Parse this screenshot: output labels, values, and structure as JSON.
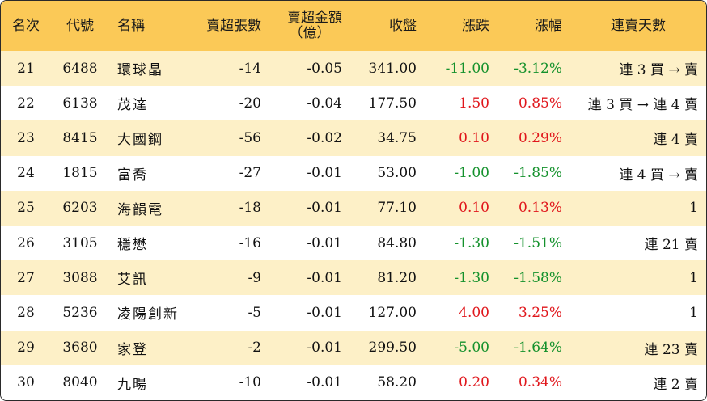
{
  "header": {
    "rank": "名次",
    "code": "代號",
    "name": "名稱",
    "net_sell_lots": "賣超張數",
    "net_sell_amount_line1": "賣超金額",
    "net_sell_amount_line2": "（億）",
    "close": "收盤",
    "change": "漲跌",
    "change_pct": "漲幅",
    "streak": "連賣天數"
  },
  "colors": {
    "header_bg": "#fbc957",
    "row_alt_bg": "#fdf0c7",
    "up": "#e0161b",
    "down": "#14912c"
  },
  "rows": [
    {
      "rank": "21",
      "code": "6488",
      "name": "環球晶",
      "lots": "-14",
      "amount": "-0.05",
      "close": "341.00",
      "change": "-11.00",
      "pct": "-3.12%",
      "dir": "down",
      "streak": "連 3 買 → 賣"
    },
    {
      "rank": "22",
      "code": "6138",
      "name": "茂達",
      "lots": "-20",
      "amount": "-0.04",
      "close": "177.50",
      "change": "1.50",
      "pct": "0.85%",
      "dir": "up",
      "streak": "連 3 買 → 連 4 賣"
    },
    {
      "rank": "23",
      "code": "8415",
      "name": "大國鋼",
      "lots": "-56",
      "amount": "-0.02",
      "close": "34.75",
      "change": "0.10",
      "pct": "0.29%",
      "dir": "up",
      "streak": "連 4 賣"
    },
    {
      "rank": "24",
      "code": "1815",
      "name": "富喬",
      "lots": "-27",
      "amount": "-0.01",
      "close": "53.00",
      "change": "-1.00",
      "pct": "-1.85%",
      "dir": "down",
      "streak": "連 4 買 → 賣"
    },
    {
      "rank": "25",
      "code": "6203",
      "name": "海韻電",
      "lots": "-18",
      "amount": "-0.01",
      "close": "77.10",
      "change": "0.10",
      "pct": "0.13%",
      "dir": "up",
      "streak": "1"
    },
    {
      "rank": "26",
      "code": "3105",
      "name": "穩懋",
      "lots": "-16",
      "amount": "-0.01",
      "close": "84.80",
      "change": "-1.30",
      "pct": "-1.51%",
      "dir": "down",
      "streak": "連 21 賣"
    },
    {
      "rank": "27",
      "code": "3088",
      "name": "艾訊",
      "lots": "-9",
      "amount": "-0.01",
      "close": "81.20",
      "change": "-1.30",
      "pct": "-1.58%",
      "dir": "down",
      "streak": "1"
    },
    {
      "rank": "28",
      "code": "5236",
      "name": "凌陽創新",
      "lots": "-5",
      "amount": "-0.01",
      "close": "127.00",
      "change": "4.00",
      "pct": "3.25%",
      "dir": "up",
      "streak": "1"
    },
    {
      "rank": "29",
      "code": "3680",
      "name": "家登",
      "lots": "-2",
      "amount": "-0.01",
      "close": "299.50",
      "change": "-5.00",
      "pct": "-1.64%",
      "dir": "down",
      "streak": "連 23 賣"
    },
    {
      "rank": "30",
      "code": "8040",
      "name": "九暘",
      "lots": "-10",
      "amount": "-0.01",
      "close": "58.20",
      "change": "0.20",
      "pct": "0.34%",
      "dir": "up",
      "streak": "連 2 賣"
    }
  ]
}
